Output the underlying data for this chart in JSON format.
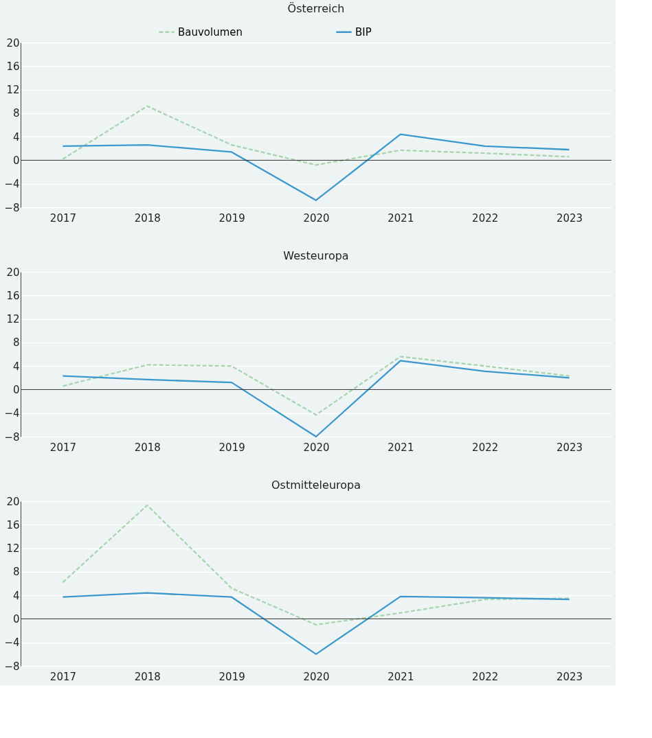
{
  "chart_data": [
    {
      "type": "line",
      "title": "Österreich",
      "categories": [
        "2017",
        "2018",
        "2019",
        "2020",
        "2021",
        "2022",
        "2023"
      ],
      "ylim": [
        -8,
        20
      ],
      "yticks": [
        -8,
        -4,
        0,
        4,
        8,
        12,
        16,
        20
      ],
      "grid": "y",
      "legend": "top",
      "marker": "none",
      "series": [
        {
          "name": "Bauvolumen",
          "color": "#a8d5b0",
          "line_style": "dashed",
          "values": [
            0.2,
            9.2,
            2.6,
            -0.8,
            1.7,
            1.2,
            0.6
          ]
        },
        {
          "name": "BIP",
          "color": "#3b97cc",
          "line_style": "solid",
          "values": [
            2.4,
            2.6,
            1.4,
            -6.8,
            4.4,
            2.4,
            1.8
          ]
        }
      ]
    },
    {
      "type": "line",
      "title": "Westeuropa",
      "categories": [
        "2017",
        "2018",
        "2019",
        "2020",
        "2021",
        "2022",
        "2023"
      ],
      "ylim": [
        -8,
        20
      ],
      "yticks": [
        -8,
        -4,
        0,
        4,
        8,
        12,
        16,
        20
      ],
      "grid": "y",
      "legend": false,
      "marker": "none",
      "series": [
        {
          "name": "Bauvolumen",
          "color": "#a8d5b0",
          "line_style": "dashed",
          "values": [
            0.6,
            4.2,
            4.0,
            -4.3,
            5.6,
            4.0,
            2.3
          ]
        },
        {
          "name": "BIP",
          "color": "#3b97cc",
          "line_style": "solid",
          "values": [
            2.3,
            1.7,
            1.2,
            -8.0,
            4.9,
            3.1,
            2.0
          ]
        }
      ]
    },
    {
      "type": "line",
      "title": "Ostmitteleuropa",
      "categories": [
        "2017",
        "2018",
        "2019",
        "2020",
        "2021",
        "2022",
        "2023"
      ],
      "ylim": [
        -8,
        20
      ],
      "yticks": [
        -8,
        -4,
        0,
        4,
        8,
        12,
        16,
        20
      ],
      "grid": "y",
      "legend": false,
      "marker": "none",
      "series": [
        {
          "name": "Bauvolumen",
          "color": "#a8d5b0",
          "line_style": "dashed",
          "values": [
            6.2,
            19.3,
            5.2,
            -1.0,
            1.0,
            3.3,
            3.5
          ]
        },
        {
          "name": "BIP",
          "color": "#3b97cc",
          "line_style": "solid",
          "values": [
            3.7,
            4.4,
            3.7,
            -6.0,
            3.8,
            3.6,
            3.3
          ]
        }
      ]
    }
  ]
}
